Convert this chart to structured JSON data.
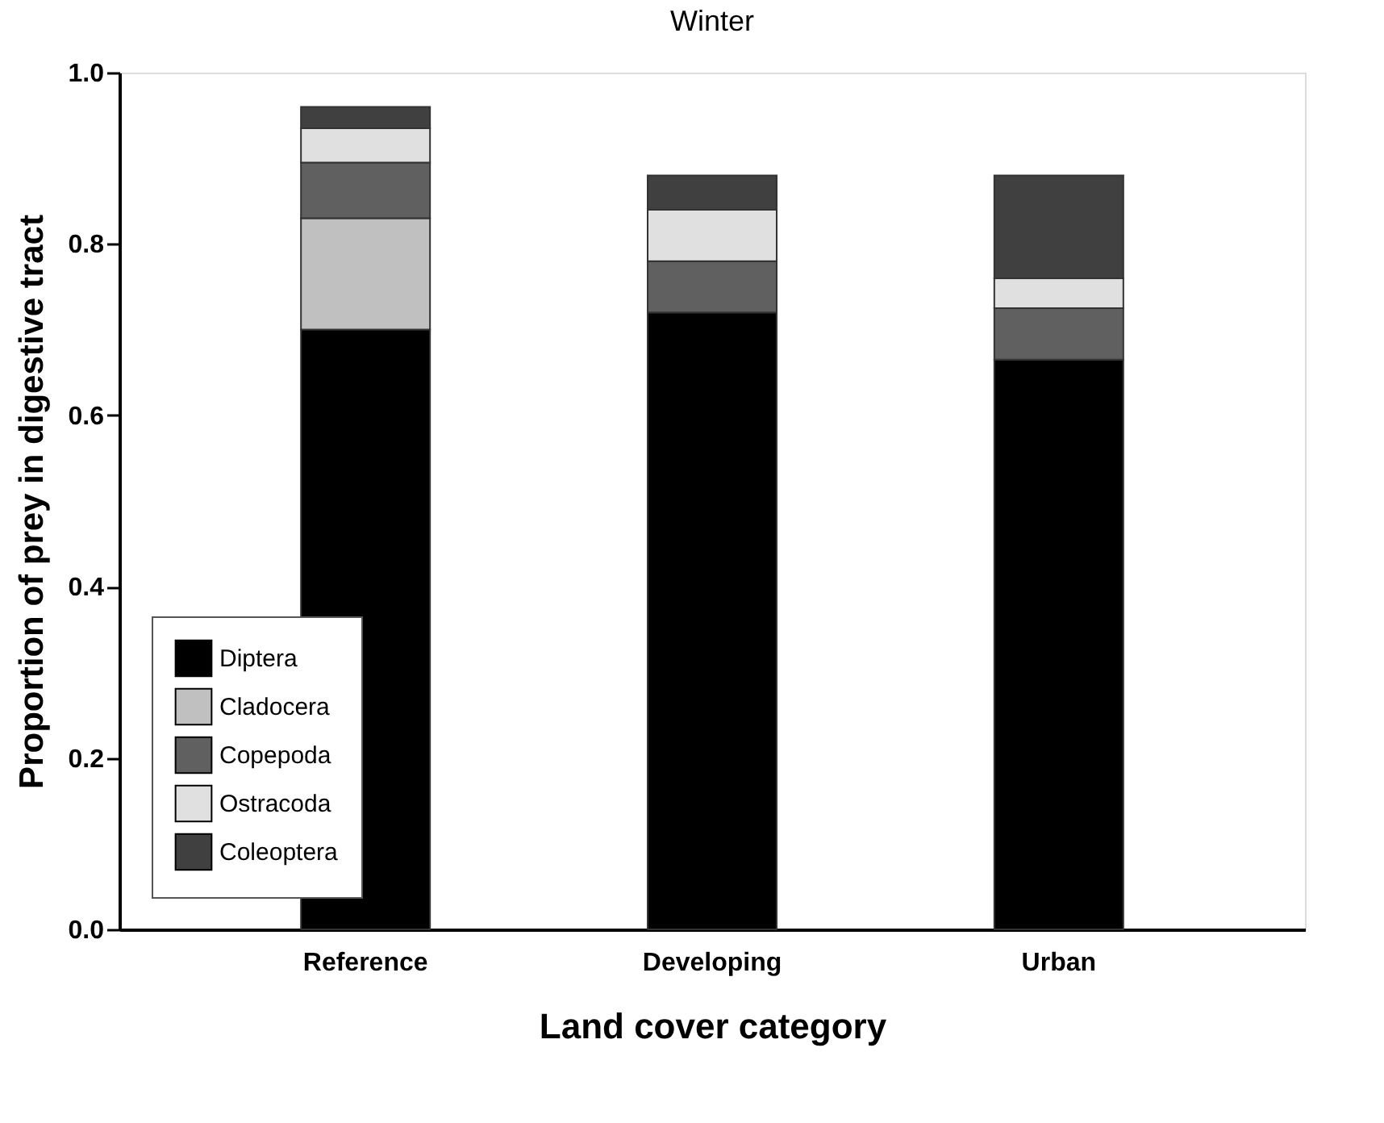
{
  "chart_data": {
    "type": "bar",
    "title": "Winter",
    "xlabel": "Land cover category",
    "ylabel": "Proportion of prey in digestive tract",
    "categories": [
      "Reference",
      "Developing",
      "Urban"
    ],
    "stacked": true,
    "series": [
      {
        "name": "Diptera",
        "color": "#000000",
        "values": [
          0.7,
          0.72,
          0.665
        ]
      },
      {
        "name": "Cladocera",
        "color": "#c0c0c0",
        "values": [
          0.13,
          0,
          0
        ]
      },
      {
        "name": "Copepoda",
        "color": "#606060",
        "values": [
          0.065,
          0.06,
          0.06
        ]
      },
      {
        "name": "Ostracoda",
        "color": "#e0e0e0",
        "values": [
          0.04,
          0.06,
          0.035
        ]
      },
      {
        "name": "Coleoptera",
        "color": "#404040",
        "values": [
          0.025,
          0.04,
          0.12
        ]
      }
    ],
    "ylim": [
      0,
      1.0
    ],
    "yticks": [
      {
        "value": 0,
        "label": "0.0"
      },
      {
        "value": 0.2,
        "label": "0.2"
      },
      {
        "value": 0.4,
        "label": "0.4"
      },
      {
        "value": 0.6,
        "label": "0.6"
      },
      {
        "value": 0.8,
        "label": "0.8"
      },
      {
        "value": 1.0,
        "label": "1.0"
      }
    ],
    "grid": false,
    "legend": "bottom left"
  }
}
